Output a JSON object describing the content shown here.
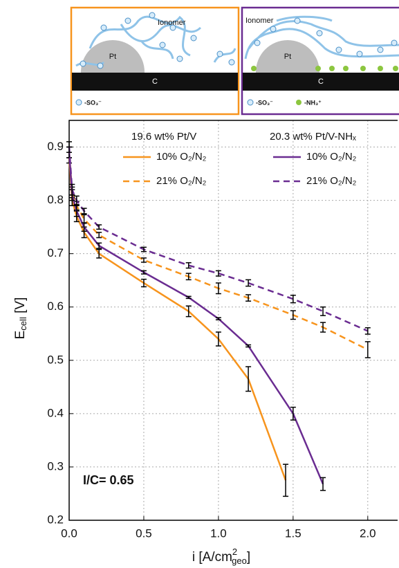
{
  "schematic": {
    "left": {
      "ionomer": "Ionomer",
      "pt": "Pt",
      "carbon": "C",
      "legend": "-SO₃⁻"
    },
    "right": {
      "ionomer": "Ionomer",
      "pt": "Pt",
      "carbon": "C",
      "legend_a": "-SO₃⁻",
      "legend_b": "-NH₃⁺"
    }
  },
  "chart_data": {
    "type": "line",
    "x_label": [
      "i [A/cm",
      "2",
      "geo",
      "]"
    ],
    "y_label": [
      "E",
      "cell",
      " [V]"
    ],
    "annotation": "I/C= 0.65",
    "legend_headers": [
      "19.6 wt% Pt/V",
      "20.3 wt% Pt/V-NHₓ"
    ],
    "xlim": [
      0,
      2.2
    ],
    "ylim": [
      0.2,
      0.95
    ],
    "xticks": [
      {
        "value": 0,
        "label": "0.0"
      },
      0.5,
      {
        "value": 1,
        "label": "1.0"
      },
      1.5,
      {
        "value": 2,
        "label": "2.0"
      }
    ],
    "yticks": [
      0.2,
      0.3,
      0.4,
      0.5,
      0.6,
      0.7,
      0.8,
      0.9
    ],
    "grid": true,
    "series": [
      {
        "name": "10% O₂/N₂",
        "group": 0,
        "color": "#f7941d",
        "dashed": false,
        "x": [
          0,
          0.02,
          0.05,
          0.1,
          0.2,
          0.5,
          0.8,
          1.0,
          1.2,
          1.45
        ],
        "values": [
          0.88,
          0.8,
          0.77,
          0.74,
          0.7,
          0.645,
          0.592,
          0.54,
          0.465,
          0.275
        ],
        "errors": [
          0.01,
          0.01,
          0.01,
          0.01,
          0.008,
          0.007,
          0.01,
          0.013,
          0.023,
          0.03
        ]
      },
      {
        "name": "21% O₂/N₂",
        "group": 0,
        "color": "#f7941d",
        "dashed": true,
        "x": [
          0,
          0.02,
          0.05,
          0.1,
          0.2,
          0.5,
          0.8,
          1.0,
          1.2,
          1.5,
          1.7,
          2.0
        ],
        "values": [
          0.89,
          0.815,
          0.79,
          0.765,
          0.735,
          0.688,
          0.657,
          0.635,
          0.617,
          0.585,
          0.562,
          0.52
        ],
        "errors": [
          0.01,
          0.01,
          0.008,
          0.008,
          0.005,
          0.004,
          0.006,
          0.01,
          0.006,
          0.008,
          0.009,
          0.015
        ]
      },
      {
        "name": "10% O₂/N₂",
        "group": 1,
        "color": "#6a2c91",
        "dashed": false,
        "x": [
          0,
          0.02,
          0.05,
          0.1,
          0.2,
          0.5,
          0.8,
          1.0,
          1.2,
          1.5,
          1.7
        ],
        "values": [
          0.89,
          0.81,
          0.78,
          0.75,
          0.715,
          0.665,
          0.618,
          0.578,
          0.527,
          0.4,
          0.268
        ],
        "errors": [
          0.01,
          0.01,
          0.01,
          0.008,
          0.005,
          0.003,
          0.002,
          0.002,
          0.002,
          0.012,
          0.012
        ]
      },
      {
        "name": "21% O₂/N₂",
        "group": 1,
        "color": "#6a2c91",
        "dashed": true,
        "x": [
          0,
          0.02,
          0.05,
          0.1,
          0.2,
          0.5,
          0.8,
          1.0,
          1.2,
          1.5,
          1.7,
          2.0
        ],
        "values": [
          0.9,
          0.82,
          0.8,
          0.78,
          0.75,
          0.708,
          0.678,
          0.663,
          0.645,
          0.615,
          0.592,
          0.555
        ],
        "errors": [
          0.01,
          0.01,
          0.008,
          0.005,
          0.004,
          0.004,
          0.005,
          0.005,
          0.006,
          0.007,
          0.008,
          0.006
        ]
      }
    ]
  }
}
